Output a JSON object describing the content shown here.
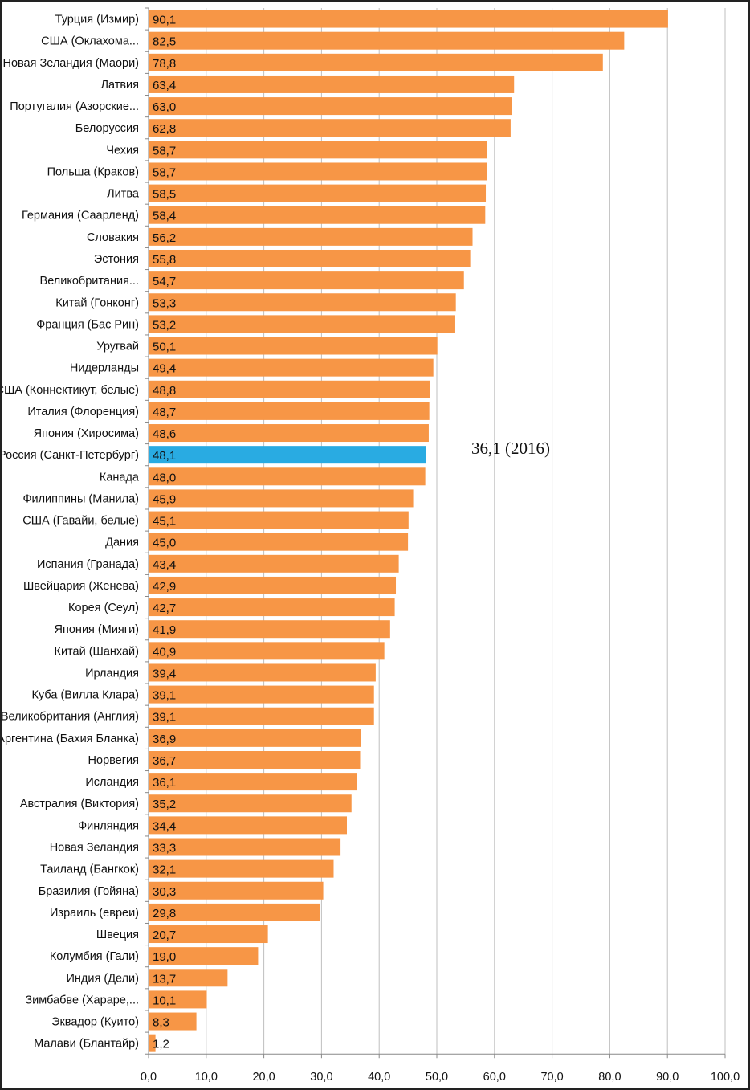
{
  "chart_data": {
    "type": "bar",
    "orientation": "horizontal",
    "categories": [
      "Турция (Измир)",
      "США (Оклахома...",
      "Новая Зеландия (Маори)",
      "Латвия",
      "Португалия (Азорские...",
      "Белоруссия",
      "Чехия",
      "Польша (Краков)",
      "Литва",
      "Германия (Саарленд)",
      "Словакия",
      "Эстония",
      "Великобритания...",
      "Китай (Гонконг)",
      "Франция (Бас Рин)",
      "Уругвай",
      "Нидерланды",
      "США (Коннектикут, белые)",
      "Италия (Флоренция)",
      "Япония (Хиросима)",
      "Россия (Санкт-Петербург)",
      "Канада",
      "Филиппины (Манила)",
      "США (Гавайи, белые)",
      "Дания",
      "Испания (Гранада)",
      "Швейцария (Женева)",
      "Корея (Сеул)",
      "Япония (Мияги)",
      "Китай (Шанхай)",
      "Ирландия",
      "Куба (Вилла Клара)",
      "Великобритания (Англия)",
      "Аргентина (Бахия Бланка)",
      "Норвегия",
      "Исландия",
      "Австралия (Виктория)",
      "Финляндия",
      "Новая Зеландия",
      "Таиланд (Бангкок)",
      "Бразилия (Гойяна)",
      "Израиль (евреи)",
      "Швеция",
      "Колумбия (Гали)",
      "Индия (Дели)",
      "Зимбабве (Хараре,...",
      "Эквадор (Куито)",
      "Малави (Блантайр)"
    ],
    "values": [
      90.1,
      82.5,
      78.8,
      63.4,
      63.0,
      62.8,
      58.7,
      58.7,
      58.5,
      58.4,
      56.2,
      55.8,
      54.7,
      53.3,
      53.2,
      50.1,
      49.4,
      48.8,
      48.7,
      48.6,
      48.1,
      48.0,
      45.9,
      45.1,
      45.0,
      43.4,
      42.9,
      42.7,
      41.9,
      40.9,
      39.4,
      39.1,
      39.1,
      36.9,
      36.7,
      36.1,
      35.2,
      34.4,
      33.3,
      32.1,
      30.3,
      29.8,
      20.7,
      19.0,
      13.7,
      10.1,
      8.3,
      1.2
    ],
    "value_labels": [
      "90,1",
      "82,5",
      "78,8",
      "63,4",
      "63,0",
      "62,8",
      "58,7",
      "58,7",
      "58,5",
      "58,4",
      "56,2",
      "55,8",
      "54,7",
      "53,3",
      "53,2",
      "50,1",
      "49,4",
      "48,8",
      "48,7",
      "48,6",
      "48,1",
      "48,0",
      "45,9",
      "45,1",
      "45,0",
      "43,4",
      "42,9",
      "42,7",
      "41,9",
      "40,9",
      "39,4",
      "39,1",
      "39,1",
      "36,9",
      "36,7",
      "36,1",
      "35,2",
      "34,4",
      "33,3",
      "32,1",
      "30,3",
      "29,8",
      "20,7",
      "19,0",
      "13,7",
      "10,1",
      "8,3",
      "1,2"
    ],
    "highlight_index": 20,
    "xlim": [
      0,
      100
    ],
    "xticks": [
      "0,0",
      "10,0",
      "20,0",
      "30,0",
      "40,0",
      "50,0",
      "60,0",
      "70,0",
      "80,0",
      "90,0",
      "100,0"
    ],
    "grid": "vertical",
    "annotation": "36,1 (2016)",
    "colors": {
      "bar": "#F79646",
      "highlight": "#29ABE2",
      "grid": "#BFBFBF"
    }
  }
}
